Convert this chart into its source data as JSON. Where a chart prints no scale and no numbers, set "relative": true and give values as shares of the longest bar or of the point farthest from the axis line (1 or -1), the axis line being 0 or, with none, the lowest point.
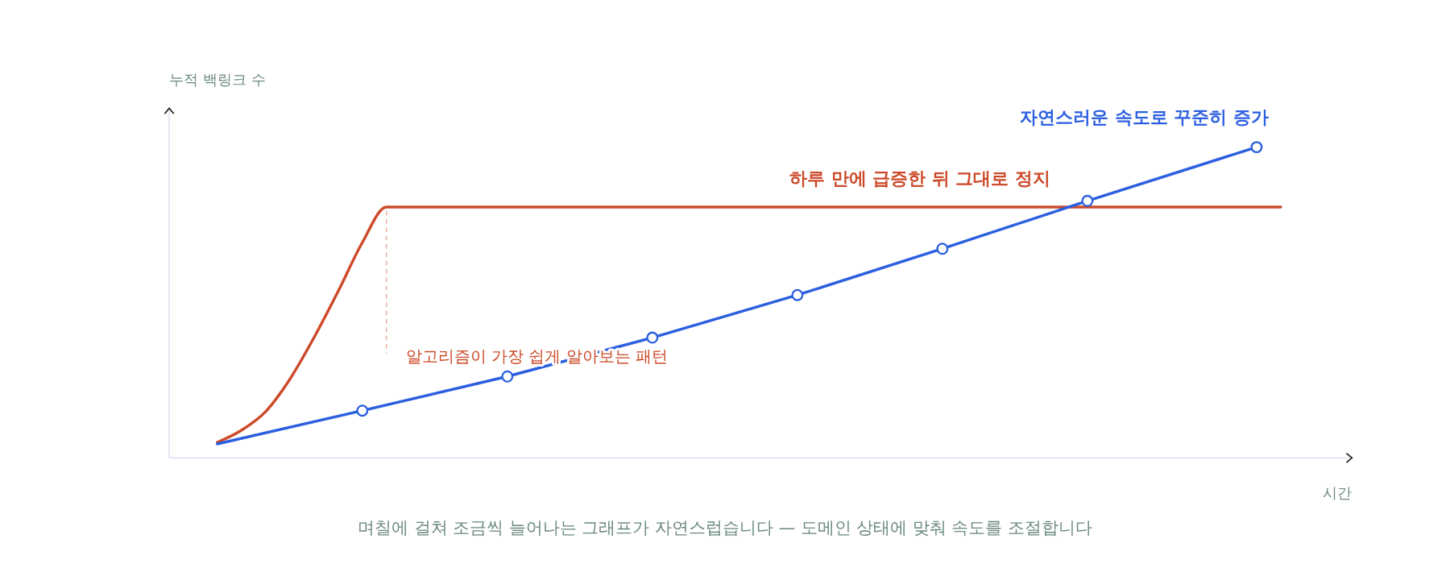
{
  "chart_data": {
    "type": "line",
    "relative": true,
    "xlabel": "시간",
    "ylabel": "누적 백링크 수",
    "categories": [
      null,
      null,
      null,
      null,
      null,
      null,
      null,
      null,
      null,
      null,
      null,
      null,
      null,
      null,
      null,
      null,
      null,
      null,
      null,
      null,
      null,
      null,
      null,
      null,
      null,
      null,
      null,
      null,
      null,
      null,
      null,
      null,
      null,
      null,
      null,
      null,
      null,
      null,
      null,
      null,
      null,
      null,
      null,
      null,
      null
    ],
    "series": [
      {
        "name": "하루 만에 급증한 뒤 그대로 정지",
        "color": "#cc4a2a",
        "marker": "none",
        "values": [
          0.05,
          0.089,
          0.149,
          0.253,
          0.387,
          0.536,
          0.693,
          0.807,
          null,
          null,
          null,
          null,
          null,
          null,
          null,
          null,
          null,
          null,
          null,
          null,
          null,
          null,
          null,
          null,
          null,
          null,
          null,
          null,
          null,
          null,
          null,
          null,
          null,
          null,
          null,
          null,
          null,
          null,
          null,
          null,
          null,
          null,
          null,
          null,
          0.807
        ]
      },
      {
        "name": "자연스러운 속도로 꾸준히 증가",
        "color": "#2b5fe0",
        "marker": "circle",
        "values": [
          0.045,
          null,
          null,
          null,
          null,
          null,
          0.152,
          null,
          null,
          null,
          null,
          null,
          0.262,
          null,
          null,
          null,
          null,
          null,
          0.387,
          null,
          null,
          null,
          null,
          null,
          0.524,
          null,
          null,
          null,
          null,
          null,
          0.673,
          null,
          null,
          null,
          null,
          null,
          0.827,
          null,
          null,
          null,
          null,
          null,
          null,
          1,
          null
        ]
      }
    ],
    "annotations": [
      "알고리즘이 가장 쉽게 알아보는 패턴",
      "며칠에 걸쳐 조금씩 늘어나는 그래프가 자연스럽습니다 — 도메인 상태에 맞춰 속도를 조절합니다"
    ]
  }
}
